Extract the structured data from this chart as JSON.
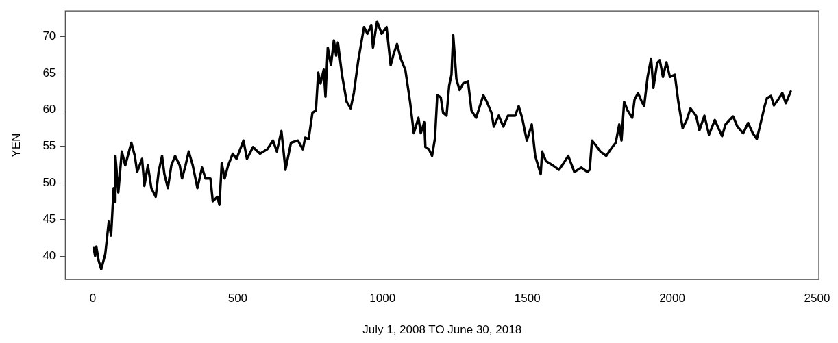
{
  "chart_data": {
    "type": "line",
    "xlabel": "July 1, 2008 TO June 30, 2018",
    "ylabel": "YEN",
    "xlim": [
      -95,
      2506
    ],
    "xticks": [
      0,
      500,
      1000,
      1500,
      2000,
      2500
    ],
    "ylim": [
      36.8,
      73.5
    ],
    "yticks": [
      40,
      45,
      50,
      55,
      60,
      65,
      70
    ],
    "grid": false,
    "legend": false,
    "marker": "none",
    "line_style": "solid",
    "series": [
      {
        "color": "#000000",
        "x": [
          3,
          8,
          12,
          20,
          29,
          43,
          55,
          63,
          72,
          77,
          78,
          88,
          100,
          112,
          133,
          145,
          153,
          170,
          178,
          190,
          202,
          217,
          227,
          239,
          247,
          259,
          271,
          284,
          300,
          308,
          320,
          331,
          345,
          361,
          377,
          389,
          406,
          414,
          430,
          437,
          445,
          455,
          467,
          483,
          496,
          520,
          532,
          553,
          577,
          602,
          622,
          635,
          651,
          665,
          684,
          708,
          725,
          733,
          745,
          758,
          770,
          778,
          786,
          797,
          803,
          811,
          822,
          832,
          840,
          846,
          860,
          876,
          890,
          901,
          916,
          936,
          948,
          961,
          967,
          981,
          997,
          1014,
          1028,
          1038,
          1050,
          1063,
          1079,
          1095,
          1108,
          1124,
          1132,
          1144,
          1148,
          1160,
          1171,
          1181,
          1189,
          1201,
          1209,
          1221,
          1230,
          1238,
          1244,
          1250,
          1255,
          1266,
          1278,
          1295,
          1307,
          1323,
          1348,
          1360,
          1376,
          1384,
          1401,
          1417,
          1433,
          1458,
          1470,
          1482,
          1498,
          1515,
          1527,
          1546,
          1551,
          1564,
          1588,
          1609,
          1625,
          1641,
          1662,
          1686,
          1707,
          1715,
          1723,
          1735,
          1752,
          1772,
          1793,
          1805,
          1817,
          1825,
          1834,
          1846,
          1862,
          1870,
          1882,
          1895,
          1903,
          1915,
          1927,
          1935,
          1948,
          1957,
          1968,
          1980,
          1992,
          2009,
          2021,
          2036,
          2050,
          2063,
          2082,
          2094,
          2111,
          2127,
          2147,
          2172,
          2184,
          2210,
          2225,
          2245,
          2262,
          2278,
          2292,
          2306,
          2319,
          2327,
          2341,
          2351,
          2364,
          2380,
          2392,
          2409
        ],
        "values": [
          41.1,
          40.0,
          41.3,
          39.4,
          38.2,
          40.3,
          44.7,
          42.8,
          49.3,
          47.4,
          53.7,
          48.7,
          54.3,
          52.4,
          55.5,
          53.7,
          51.5,
          53.3,
          49.6,
          52.4,
          49.3,
          48.1,
          51.5,
          53.7,
          51.2,
          49.3,
          52.4,
          53.7,
          52.4,
          50.6,
          52.4,
          54.3,
          52.4,
          49.3,
          52.1,
          50.6,
          50.6,
          47.5,
          48.1,
          47.0,
          52.7,
          50.6,
          52.4,
          54.0,
          53.3,
          55.8,
          53.3,
          54.9,
          54.0,
          54.6,
          55.8,
          54.3,
          57.1,
          51.8,
          55.5,
          55.8,
          54.6,
          56.2,
          56.0,
          59.6,
          59.9,
          65.1,
          63.6,
          65.5,
          61.8,
          68.5,
          66.1,
          69.5,
          67.4,
          69.2,
          64.8,
          61.1,
          60.2,
          62.3,
          66.7,
          71.3,
          70.4,
          71.6,
          68.5,
          72.1,
          70.4,
          71.3,
          66.1,
          67.6,
          69.0,
          67.0,
          65.4,
          61.1,
          56.8,
          58.9,
          56.8,
          58.3,
          54.9,
          54.6,
          53.7,
          56.1,
          62.0,
          61.7,
          59.6,
          59.2,
          63.3,
          64.8,
          70.2,
          67.0,
          64.2,
          62.7,
          63.6,
          63.9,
          59.9,
          58.9,
          62.0,
          61.1,
          59.6,
          57.7,
          59.2,
          57.7,
          59.2,
          59.2,
          60.5,
          58.9,
          55.8,
          58.0,
          53.7,
          51.2,
          54.3,
          53.0,
          52.4,
          51.8,
          52.7,
          53.7,
          51.5,
          52.1,
          51.5,
          51.8,
          55.8,
          55.2,
          54.3,
          53.7,
          54.9,
          55.5,
          58.0,
          55.8,
          61.1,
          59.9,
          58.9,
          61.4,
          62.3,
          61.1,
          60.5,
          64.5,
          67.0,
          63.0,
          66.4,
          66.8,
          64.5,
          66.5,
          64.5,
          64.8,
          61.1,
          57.5,
          58.6,
          60.2,
          59.2,
          57.2,
          59.2,
          56.6,
          58.6,
          56.4,
          58.0,
          59.1,
          57.7,
          56.8,
          58.2,
          56.8,
          56.0,
          58.3,
          60.5,
          61.6,
          61.9,
          60.6,
          61.3,
          62.3,
          60.9,
          62.5
        ]
      }
    ]
  }
}
